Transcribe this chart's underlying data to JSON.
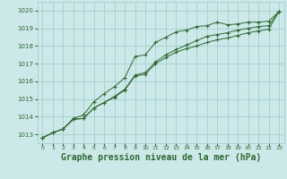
{
  "background_color": "#cce8e8",
  "grid_color": "#99cccc",
  "line_color": "#2d6a2d",
  "xlabel": "Graphe pression niveau de la mer (hPa)",
  "xlabel_fontsize": 7,
  "ylim": [
    1012.5,
    1020.5
  ],
  "xlim": [
    -0.5,
    23.5
  ],
  "yticks": [
    1013,
    1014,
    1015,
    1016,
    1017,
    1018,
    1019,
    1020
  ],
  "xticks": [
    0,
    1,
    2,
    3,
    4,
    5,
    6,
    7,
    8,
    9,
    10,
    11,
    12,
    13,
    14,
    15,
    16,
    17,
    18,
    19,
    20,
    21,
    22,
    23
  ],
  "series1": [
    1012.8,
    1013.1,
    1013.3,
    1013.9,
    1014.1,
    1014.85,
    1015.3,
    1015.7,
    1016.2,
    1017.4,
    1017.5,
    1018.2,
    1018.5,
    1018.8,
    1018.9,
    1019.1,
    1019.15,
    1019.35,
    1019.2,
    1019.25,
    1019.35,
    1019.35,
    1019.4,
    1019.95
  ],
  "series2": [
    1012.8,
    1013.1,
    1013.3,
    1013.85,
    1013.9,
    1014.5,
    1014.8,
    1015.15,
    1015.55,
    1016.35,
    1016.5,
    1017.1,
    1017.5,
    1017.8,
    1018.05,
    1018.3,
    1018.55,
    1018.65,
    1018.75,
    1018.9,
    1019.0,
    1019.1,
    1019.15,
    1019.95
  ],
  "series3": [
    1012.8,
    1013.1,
    1013.3,
    1013.85,
    1013.9,
    1014.5,
    1014.8,
    1015.1,
    1015.5,
    1016.3,
    1016.4,
    1017.0,
    1017.35,
    1017.65,
    1017.85,
    1018.0,
    1018.2,
    1018.35,
    1018.45,
    1018.6,
    1018.75,
    1018.85,
    1018.95,
    1019.95
  ]
}
